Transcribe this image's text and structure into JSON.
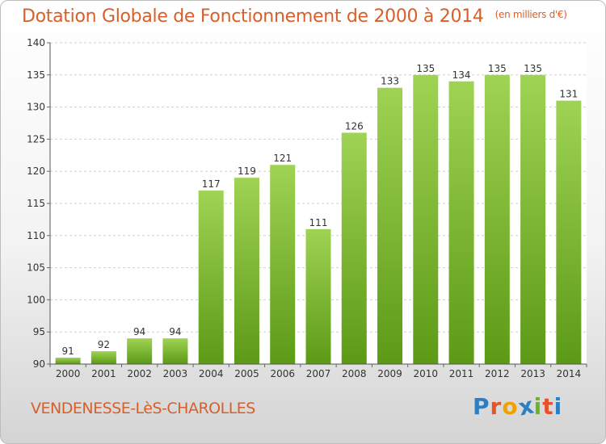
{
  "title": "Dotation Globale de Fonctionnement de 2000 à 2014",
  "unit_note": "(en milliers d'€)",
  "commune": "VENDENESSE-LèS-CHAROLLES",
  "brand": "Proxiti",
  "colors": {
    "title": "#d85f2a",
    "bar_light": "#9fd353",
    "bar_dark": "#5c9a16",
    "logo_letters": [
      "#2b7fc2",
      "#e5532c",
      "#f2a200",
      "#2b7fc2",
      "#6ab42d",
      "#e5532c",
      "#2b7fc2"
    ]
  },
  "chart_data": {
    "type": "bar",
    "categories": [
      "2000",
      "2001",
      "2002",
      "2003",
      "2004",
      "2005",
      "2006",
      "2007",
      "2008",
      "2009",
      "2010",
      "2011",
      "2012",
      "2013",
      "2014"
    ],
    "values": [
      91,
      92,
      94,
      94,
      117,
      119,
      121,
      111,
      126,
      133,
      135,
      134,
      135,
      135,
      131
    ],
    "ylim": [
      90,
      140
    ],
    "yticks": [
      90,
      95,
      100,
      105,
      110,
      115,
      120,
      125,
      130,
      135,
      140
    ],
    "grid": true,
    "data_labels": true
  }
}
